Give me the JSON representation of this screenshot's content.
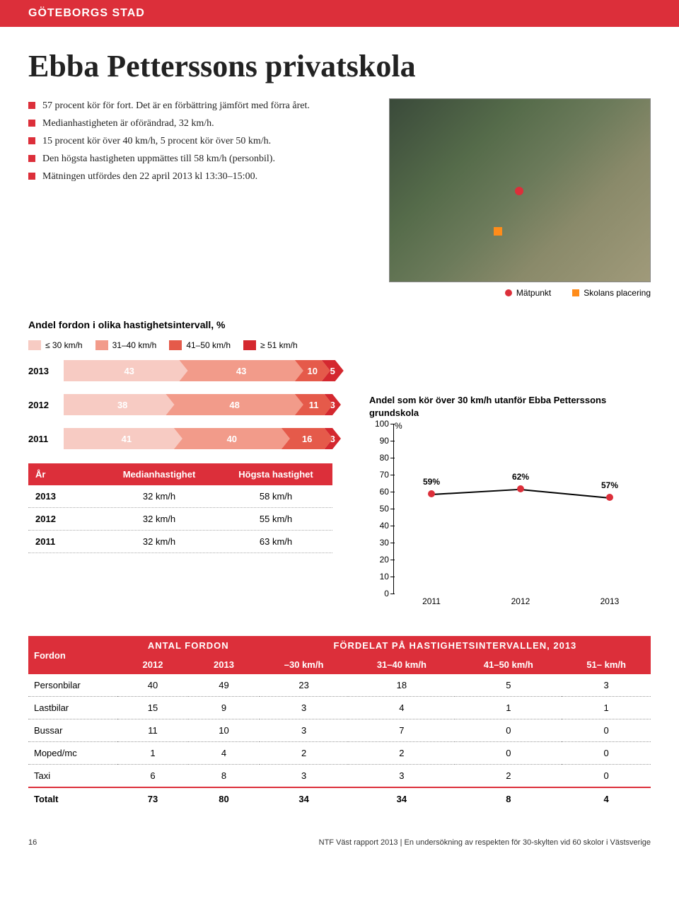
{
  "header_band": "GÖTEBORGS STAD",
  "title": "Ebba Petterssons privatskola",
  "bullets": [
    "57 procent kör för fort. Det är en förbättring jämfört med förra året.",
    "Medianhastigheten är oförändrad, 32 km/h.",
    "15 procent kör över 40 km/h, 5 procent kör över 50 km/h.",
    "Den högsta hastigheten uppmättes till 58 km/h (personbil).",
    "Mätningen utfördes den 22 april 2013 kl 13:30–15:00."
  ],
  "map_legend": {
    "point": "Mätpunkt",
    "school": "Skolans placering"
  },
  "interval_title": "Andel fordon i olika hastighetsintervall, %",
  "interval_legend": [
    {
      "label": "≤ 30 km/h",
      "color": "#f7cbc3"
    },
    {
      "label": "31–40 km/h",
      "color": "#f29b8a"
    },
    {
      "label": "41–50 km/h",
      "color": "#e55a4a"
    },
    {
      "label": "≥ 51 km/h",
      "color": "#d4282f"
    }
  ],
  "stack_bars": [
    {
      "year": "2013",
      "values": [
        43,
        43,
        10,
        5
      ]
    },
    {
      "year": "2012",
      "values": [
        38,
        48,
        11,
        3
      ]
    },
    {
      "year": "2011",
      "values": [
        41,
        40,
        16,
        3
      ]
    }
  ],
  "speed_table": {
    "headers": [
      "År",
      "Medianhastighet",
      "Högsta hastighet"
    ],
    "rows": [
      [
        "2013",
        "32 km/h",
        "58 km/h"
      ],
      [
        "2012",
        "32 km/h",
        "55 km/h"
      ],
      [
        "2011",
        "32 km/h",
        "63 km/h"
      ]
    ]
  },
  "line_chart": {
    "title": "Andel som kör över 30 km/h utanför Ebba Petterssons grundskola",
    "y_unit": "%",
    "ymax": 100,
    "ytick_step": 10,
    "years": [
      "2011",
      "2012",
      "2013"
    ],
    "values": [
      59,
      62,
      57
    ],
    "labels": [
      "59%",
      "62%",
      "57%"
    ],
    "point_color": "#dc2f3a",
    "line_color": "#000000"
  },
  "big_table": {
    "col_fordon": "Fordon",
    "group1": "ANTAL FORDON",
    "group2": "FÖRDELAT PÅ HASTIGHETSINTERVALLEN, 2013",
    "sub_headers": [
      "2012",
      "2013",
      "–30 km/h",
      "31–40 km/h",
      "41–50 km/h",
      "51– km/h"
    ],
    "rows": [
      [
        "Personbilar",
        "40",
        "49",
        "23",
        "18",
        "5",
        "3"
      ],
      [
        "Lastbilar",
        "15",
        "9",
        "3",
        "4",
        "1",
        "1"
      ],
      [
        "Bussar",
        "11",
        "10",
        "3",
        "7",
        "0",
        "0"
      ],
      [
        "Moped/mc",
        "1",
        "4",
        "2",
        "2",
        "0",
        "0"
      ],
      [
        "Taxi",
        "6",
        "8",
        "3",
        "3",
        "2",
        "0"
      ]
    ],
    "total": [
      "Totalt",
      "73",
      "80",
      "34",
      "34",
      "8",
      "4"
    ]
  },
  "footer": {
    "page": "16",
    "text": "NTF Väst rapport 2013 | En undersökning av respekten för 30-skylten vid 60 skolor i Västsverige"
  }
}
